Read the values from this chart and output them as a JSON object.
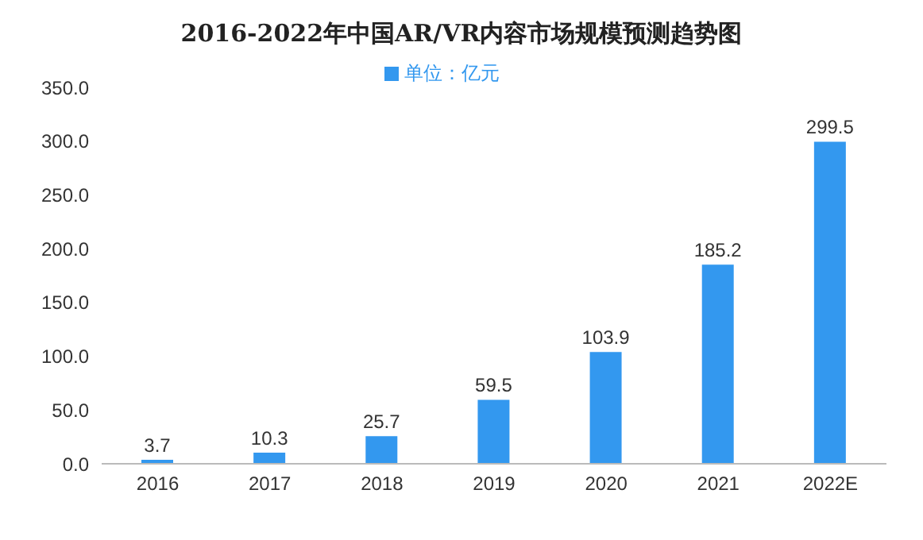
{
  "chart_data": {
    "type": "bar",
    "title": "2016-2022年中国AR/VR内容市场规模预测趋势图",
    "categories": [
      "2016",
      "2017",
      "2018",
      "2019",
      "2020",
      "2021",
      "2022E"
    ],
    "series": [
      {
        "name": "单位：亿元",
        "color": "#3398ef",
        "values": [
          3.7,
          10.3,
          25.7,
          59.5,
          103.9,
          185.2,
          299.5
        ]
      }
    ],
    "ylim": [
      0,
      350
    ],
    "yticks": [
      {
        "value": 0,
        "label": "0.0"
      },
      {
        "value": 50,
        "label": "50.0"
      },
      {
        "value": 100,
        "label": "100.0"
      },
      {
        "value": 150,
        "label": "150.0"
      },
      {
        "value": 200,
        "label": "200.0"
      },
      {
        "value": 250,
        "label": "250.0"
      },
      {
        "value": 300,
        "label": "300.0"
      },
      {
        "value": 350,
        "label": "350.0"
      }
    ],
    "data_labels": true,
    "legend": "top",
    "grid": false
  }
}
